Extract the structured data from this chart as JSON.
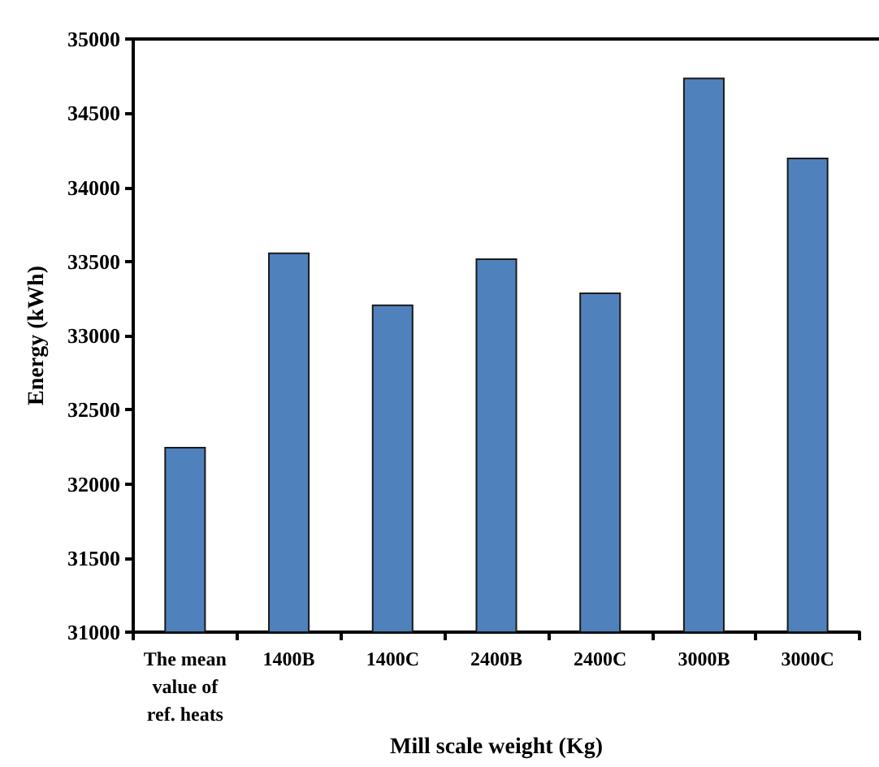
{
  "chart_data": {
    "type": "bar",
    "xlabel": "Mill scale weight (Kg)",
    "ylabel": "Energy (kWh)",
    "categories": [
      "The mean\nvalue of\nref. heats",
      "1400B",
      "1400C",
      "2400B",
      "2400C",
      "3000B",
      "3000C"
    ],
    "values": [
      32250,
      33560,
      33210,
      33520,
      33290,
      34740,
      34200
    ],
    "color": "#4f81bd",
    "ylim": [
      31000,
      35000
    ],
    "yticks": [
      31000,
      31500,
      32000,
      32500,
      33000,
      33500,
      34000,
      34500,
      35000
    ],
    "grid": false
  }
}
